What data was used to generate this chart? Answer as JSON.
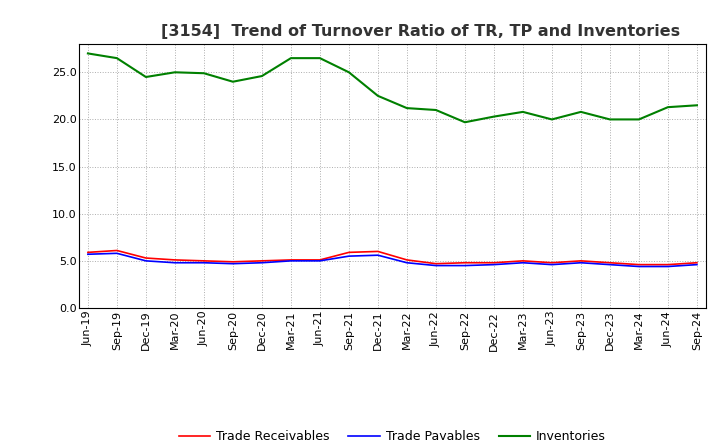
{
  "title": "[3154]  Trend of Turnover Ratio of TR, TP and Inventories",
  "x_labels": [
    "Jun-19",
    "Sep-19",
    "Dec-19",
    "Mar-20",
    "Jun-20",
    "Sep-20",
    "Dec-20",
    "Mar-21",
    "Jun-21",
    "Sep-21",
    "Dec-21",
    "Mar-22",
    "Jun-22",
    "Sep-22",
    "Dec-22",
    "Mar-23",
    "Jun-23",
    "Sep-23",
    "Dec-23",
    "Mar-24",
    "Jun-24",
    "Sep-24"
  ],
  "trade_receivables": [
    5.9,
    6.1,
    5.3,
    5.1,
    5.0,
    4.9,
    5.0,
    5.1,
    5.1,
    5.9,
    6.0,
    5.1,
    4.7,
    4.8,
    4.8,
    5.0,
    4.8,
    5.0,
    4.8,
    4.6,
    4.6,
    4.8
  ],
  "trade_payables": [
    5.7,
    5.8,
    5.0,
    4.8,
    4.8,
    4.7,
    4.8,
    5.0,
    5.0,
    5.5,
    5.6,
    4.8,
    4.5,
    4.5,
    4.6,
    4.8,
    4.6,
    4.8,
    4.6,
    4.4,
    4.4,
    4.6
  ],
  "inventories": [
    27.0,
    26.5,
    24.5,
    25.0,
    24.9,
    24.0,
    24.6,
    26.5,
    26.5,
    25.0,
    22.5,
    21.2,
    21.0,
    19.7,
    20.3,
    20.8,
    20.0,
    20.8,
    20.0,
    20.0,
    21.3,
    21.5
  ],
  "tr_color": "#ff0000",
  "tp_color": "#0000ff",
  "inv_color": "#008000",
  "ylim": [
    0,
    28
  ],
  "yticks": [
    0.0,
    5.0,
    10.0,
    15.0,
    20.0,
    25.0
  ],
  "background_color": "#ffffff",
  "grid_color": "#999999",
  "title_fontsize": 11.5,
  "legend_fontsize": 9,
  "tick_fontsize": 8
}
